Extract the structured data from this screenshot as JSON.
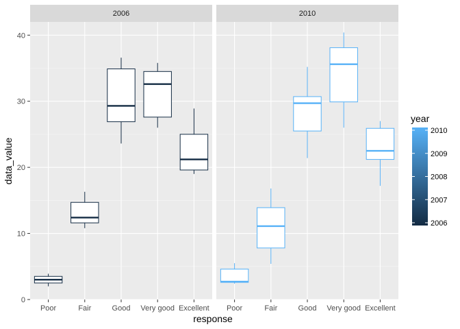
{
  "chart_data": {
    "type": "boxplot",
    "xlabel": "response",
    "ylabel": "data_value",
    "ylim": [
      0,
      42
    ],
    "y_ticks": [
      0,
      10,
      20,
      30,
      40
    ],
    "categories": [
      "Poor",
      "Fair",
      "Good",
      "Very good",
      "Excellent"
    ],
    "grid": true,
    "legend_position": "right",
    "panels": [
      {
        "label": "2006",
        "color": "#132b43",
        "boxes": [
          {
            "category": "Poor",
            "min": 2.0,
            "q1": 2.5,
            "median": 3.0,
            "q3": 3.5,
            "max": 3.9
          },
          {
            "category": "Fair",
            "min": 10.8,
            "q1": 11.6,
            "median": 12.4,
            "q3": 14.7,
            "max": 16.3
          },
          {
            "category": "Good",
            "min": 23.6,
            "q1": 26.9,
            "median": 29.3,
            "q3": 34.9,
            "max": 36.6
          },
          {
            "category": "Very good",
            "min": 26.0,
            "q1": 27.6,
            "median": 32.6,
            "q3": 34.5,
            "max": 35.8
          },
          {
            "category": "Excellent",
            "min": 19.0,
            "q1": 19.6,
            "median": 21.2,
            "q3": 25.0,
            "max": 28.9
          }
        ]
      },
      {
        "label": "2010",
        "color": "#56b1f7",
        "boxes": [
          {
            "category": "Poor",
            "min": 2.4,
            "q1": 2.6,
            "median": 2.7,
            "q3": 4.6,
            "max": 5.5
          },
          {
            "category": "Fair",
            "min": 5.4,
            "q1": 7.8,
            "median": 11.1,
            "q3": 13.9,
            "max": 16.8
          },
          {
            "category": "Good",
            "min": 21.4,
            "q1": 25.5,
            "median": 29.7,
            "q3": 30.7,
            "max": 35.2
          },
          {
            "category": "Very good",
            "min": 26.0,
            "q1": 29.9,
            "median": 35.6,
            "q3": 38.1,
            "max": 40.4
          },
          {
            "category": "Excellent",
            "min": 17.2,
            "q1": 21.2,
            "median": 22.5,
            "q3": 25.9,
            "max": 27.0
          }
        ]
      }
    ],
    "legend": {
      "title": "year",
      "labels": [
        "2010",
        "2009",
        "2008",
        "2007",
        "2006"
      ],
      "low_color": "#132b43",
      "high_color": "#56b1f7"
    },
    "panel_background": "#ebebeb",
    "strip_background": "#d9d9d9"
  }
}
